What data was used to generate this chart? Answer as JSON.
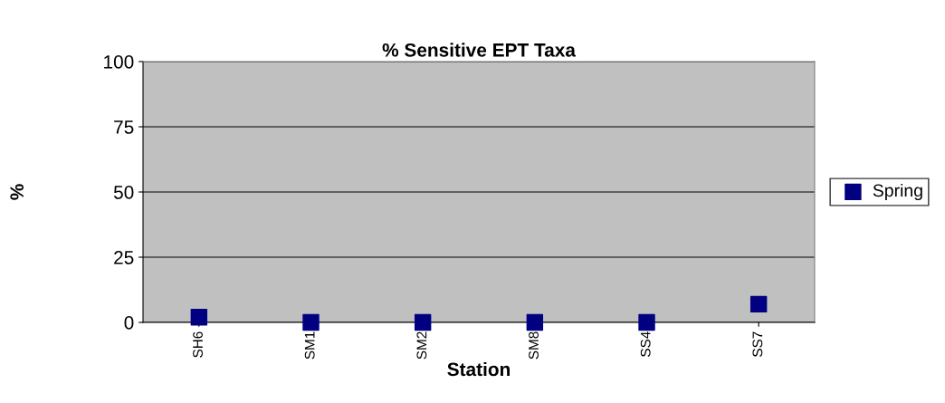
{
  "chart_data": {
    "type": "scatter",
    "title": "% Sensitive EPT Taxa",
    "xlabel": "Station",
    "ylabel": "%",
    "categories": [
      "SH6",
      "SM1",
      "SM2",
      "SM8",
      "SS4",
      "SS7"
    ],
    "series": [
      {
        "name": "Spring",
        "color": "#000080",
        "values": [
          2,
          0,
          0,
          0,
          0,
          7
        ]
      }
    ],
    "ylim": [
      0,
      100
    ],
    "yticks": [
      0,
      25,
      50,
      75,
      100
    ],
    "grid": "y",
    "legend": "right",
    "marker": "square"
  }
}
